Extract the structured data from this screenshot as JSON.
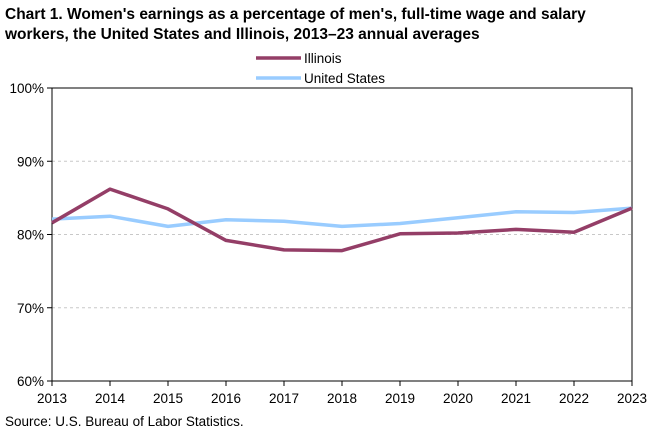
{
  "title_line1": "Chart 1. Women's earnings as a percentage of men's, full-time wage and salary",
  "title_line2": "workers, the United States and Illinois,  2013–23 annual averages",
  "source": "Source:  U.S. Bureau of Labor Statistics.",
  "chart_data": {
    "type": "line",
    "title": "Chart 1. Women's earnings as a percentage of men's, full-time wage and salary workers, the United States and Illinois,  2013–23 annual averages",
    "x": [
      2013,
      2014,
      2015,
      2016,
      2017,
      2018,
      2019,
      2020,
      2021,
      2022,
      2023
    ],
    "x_tick_labels": [
      "2013",
      "2014",
      "2015",
      "2016",
      "2017",
      "2018",
      "2019",
      "2020",
      "2021",
      "2022",
      "2023"
    ],
    "ylim": [
      60,
      100
    ],
    "y_ticks": [
      60,
      70,
      80,
      90,
      100
    ],
    "y_tick_labels": [
      "60%",
      "70%",
      "80%",
      "90%",
      "100%"
    ],
    "grid": "horizontal dashed",
    "legend_position": "top-center",
    "series": [
      {
        "name": "Illinois",
        "color": "#943E67",
        "values": [
          81.6,
          86.2,
          83.5,
          79.2,
          77.9,
          77.8,
          80.1,
          80.2,
          80.7,
          80.3,
          83.6
        ]
      },
      {
        "name": "United States",
        "color": "#99CCFF",
        "values": [
          82.1,
          82.5,
          81.1,
          82.0,
          81.8,
          81.1,
          81.5,
          82.3,
          83.1,
          83.0,
          83.6
        ]
      }
    ]
  }
}
